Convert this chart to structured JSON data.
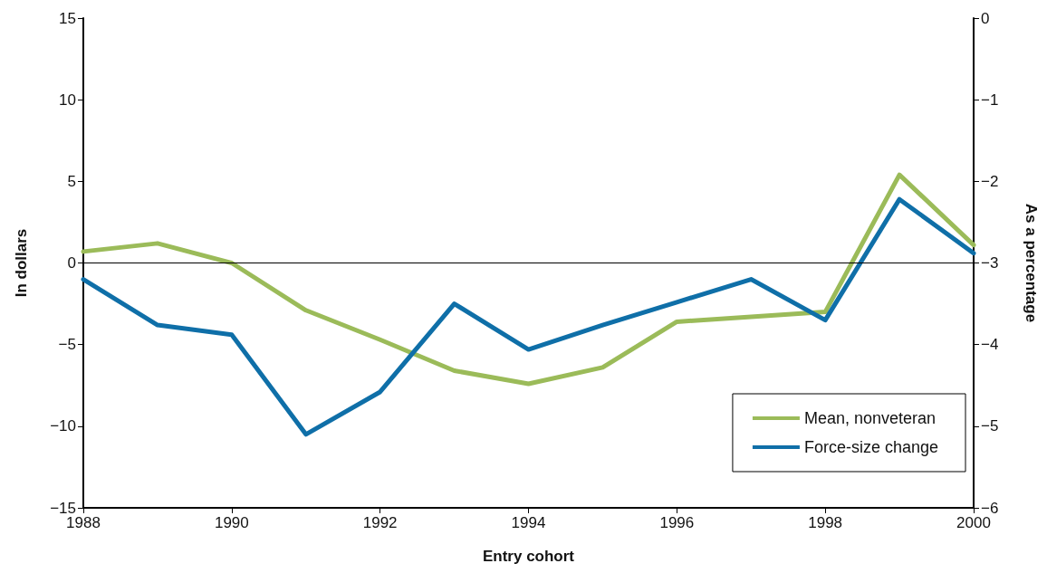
{
  "chart_data": {
    "type": "line",
    "xlabel": "Entry cohort",
    "ylabel": "In dollars",
    "y2label": "As a percentage",
    "x": [
      1988,
      1989,
      1990,
      1991,
      1992,
      1993,
      1994,
      1995,
      1996,
      1997,
      1998,
      1999,
      2000
    ],
    "series": [
      {
        "name": "Mean, nonveteran",
        "color": "#9bbb59",
        "values": [
          0.7,
          1.2,
          0,
          -2.9,
          -4.7,
          -6.6,
          -7.4,
          -6.4,
          -3.6,
          -3.3,
          -3.0,
          5.4,
          1.1
        ]
      },
      {
        "name": "Force-size change",
        "color": "#0f6fa8",
        "values": [
          -1.0,
          -3.8,
          -4.4,
          -10.5,
          -7.9,
          -2.5,
          -5.3,
          -3.8,
          -2.4,
          -1.0,
          -3.5,
          3.9,
          0.6
        ]
      }
    ],
    "xlim": [
      1988,
      2000
    ],
    "xticks": [
      1988,
      1990,
      1992,
      1994,
      1996,
      1998,
      2000
    ],
    "ylim": [
      -15,
      15
    ],
    "yticks": [
      -15,
      -10,
      -5,
      0,
      5,
      10,
      15
    ],
    "y2lim": [
      -6,
      0
    ],
    "y2ticks": [
      -6,
      -5,
      -4,
      -3,
      -2,
      -1,
      0
    ],
    "ref_lines": [
      {
        "axis": "y",
        "value": 0,
        "color": "#000000"
      }
    ],
    "grid": false,
    "legend": "bottom right",
    "line_style": "solid"
  }
}
